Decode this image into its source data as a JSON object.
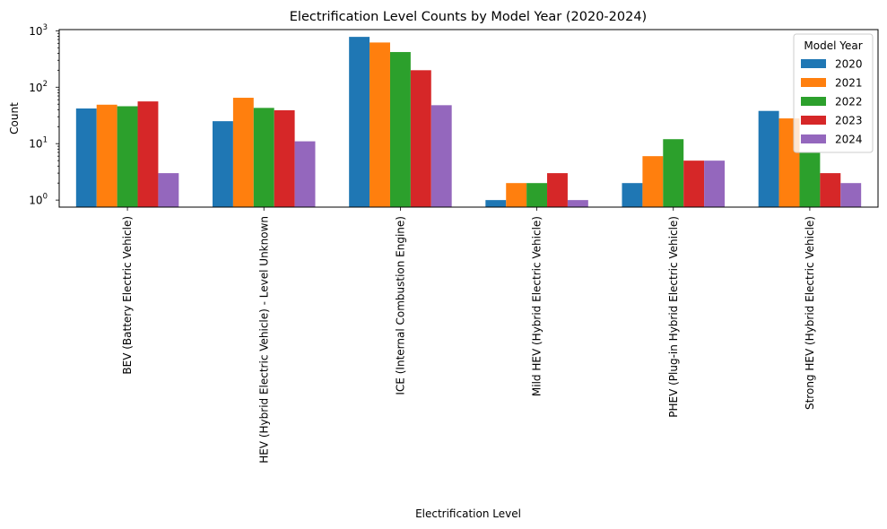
{
  "chart_data": {
    "type": "bar",
    "title": "Electrification Level Counts by Model Year (2020-2024)",
    "xlabel": "Electrification Level",
    "ylabel": "Count",
    "yscale": "log",
    "ylim": [
      0.75,
      1050
    ],
    "yticks": [
      {
        "value": 1,
        "label": "10",
        "exp": "0"
      },
      {
        "value": 10,
        "label": "10",
        "exp": "1"
      },
      {
        "value": 100,
        "label": "10",
        "exp": "2"
      },
      {
        "value": 1000,
        "label": "10",
        "exp": "3"
      }
    ],
    "grid": false,
    "legend": {
      "title": "Model Year",
      "placement": "top-right"
    },
    "categories": [
      "BEV (Battery Electric Vehicle)",
      "HEV (Hybrid Electric Vehicle) - Level Unknown",
      "ICE (Internal Combustion Engine)",
      "Mild HEV (Hybrid Electric Vehicle)",
      "PHEV (Plug-in Hybrid Electric Vehicle)",
      "Strong HEV (Hybrid Electric Vehicle)"
    ],
    "series": [
      {
        "name": "2020",
        "color": "#1f77b4",
        "values": [
          42,
          25,
          780,
          1,
          2,
          38
        ]
      },
      {
        "name": "2021",
        "color": "#ff7f0e",
        "values": [
          49,
          65,
          620,
          2,
          6,
          28
        ]
      },
      {
        "name": "2022",
        "color": "#2ca02c",
        "values": [
          46,
          43,
          420,
          2,
          12,
          7
        ]
      },
      {
        "name": "2023",
        "color": "#d62728",
        "values": [
          56,
          39,
          200,
          3,
          5,
          3
        ]
      },
      {
        "name": "2024",
        "color": "#9467bd",
        "values": [
          3,
          11,
          48,
          1,
          5,
          2
        ]
      }
    ]
  }
}
